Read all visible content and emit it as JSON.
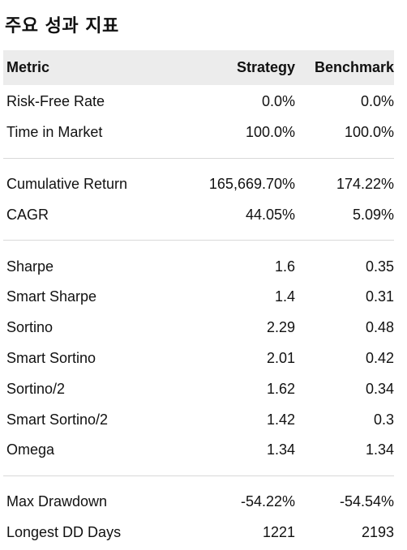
{
  "title": "주요 성과 지표",
  "table": {
    "headers": {
      "metric": "Metric",
      "strategy": "Strategy",
      "benchmark": "Benchmark"
    },
    "groups": [
      [
        {
          "metric": "Risk-Free Rate",
          "strategy": "0.0%",
          "benchmark": "0.0%"
        },
        {
          "metric": "Time in Market",
          "strategy": "100.0%",
          "benchmark": "100.0%"
        }
      ],
      [
        {
          "metric": "Cumulative Return",
          "strategy": "165,669.70%",
          "benchmark": "174.22%"
        },
        {
          "metric": "CAGR",
          "strategy": "44.05%",
          "benchmark": "5.09%"
        }
      ],
      [
        {
          "metric": "Sharpe",
          "strategy": "1.6",
          "benchmark": "0.35"
        },
        {
          "metric": "Smart Sharpe",
          "strategy": "1.4",
          "benchmark": "0.31"
        },
        {
          "metric": "Sortino",
          "strategy": "2.29",
          "benchmark": "0.48"
        },
        {
          "metric": "Smart Sortino",
          "strategy": "2.01",
          "benchmark": "0.42"
        },
        {
          "metric": "Sortino/2",
          "strategy": "1.62",
          "benchmark": "0.34"
        },
        {
          "metric": "Smart Sortino/2",
          "strategy": "1.42",
          "benchmark": "0.3"
        },
        {
          "metric": "Omega",
          "strategy": "1.34",
          "benchmark": "1.34"
        }
      ],
      [
        {
          "metric": "Max Drawdown",
          "strategy": "-54.22%",
          "benchmark": "-54.54%"
        },
        {
          "metric": "Longest DD Days",
          "strategy": "1221",
          "benchmark": "2193"
        }
      ]
    ]
  }
}
